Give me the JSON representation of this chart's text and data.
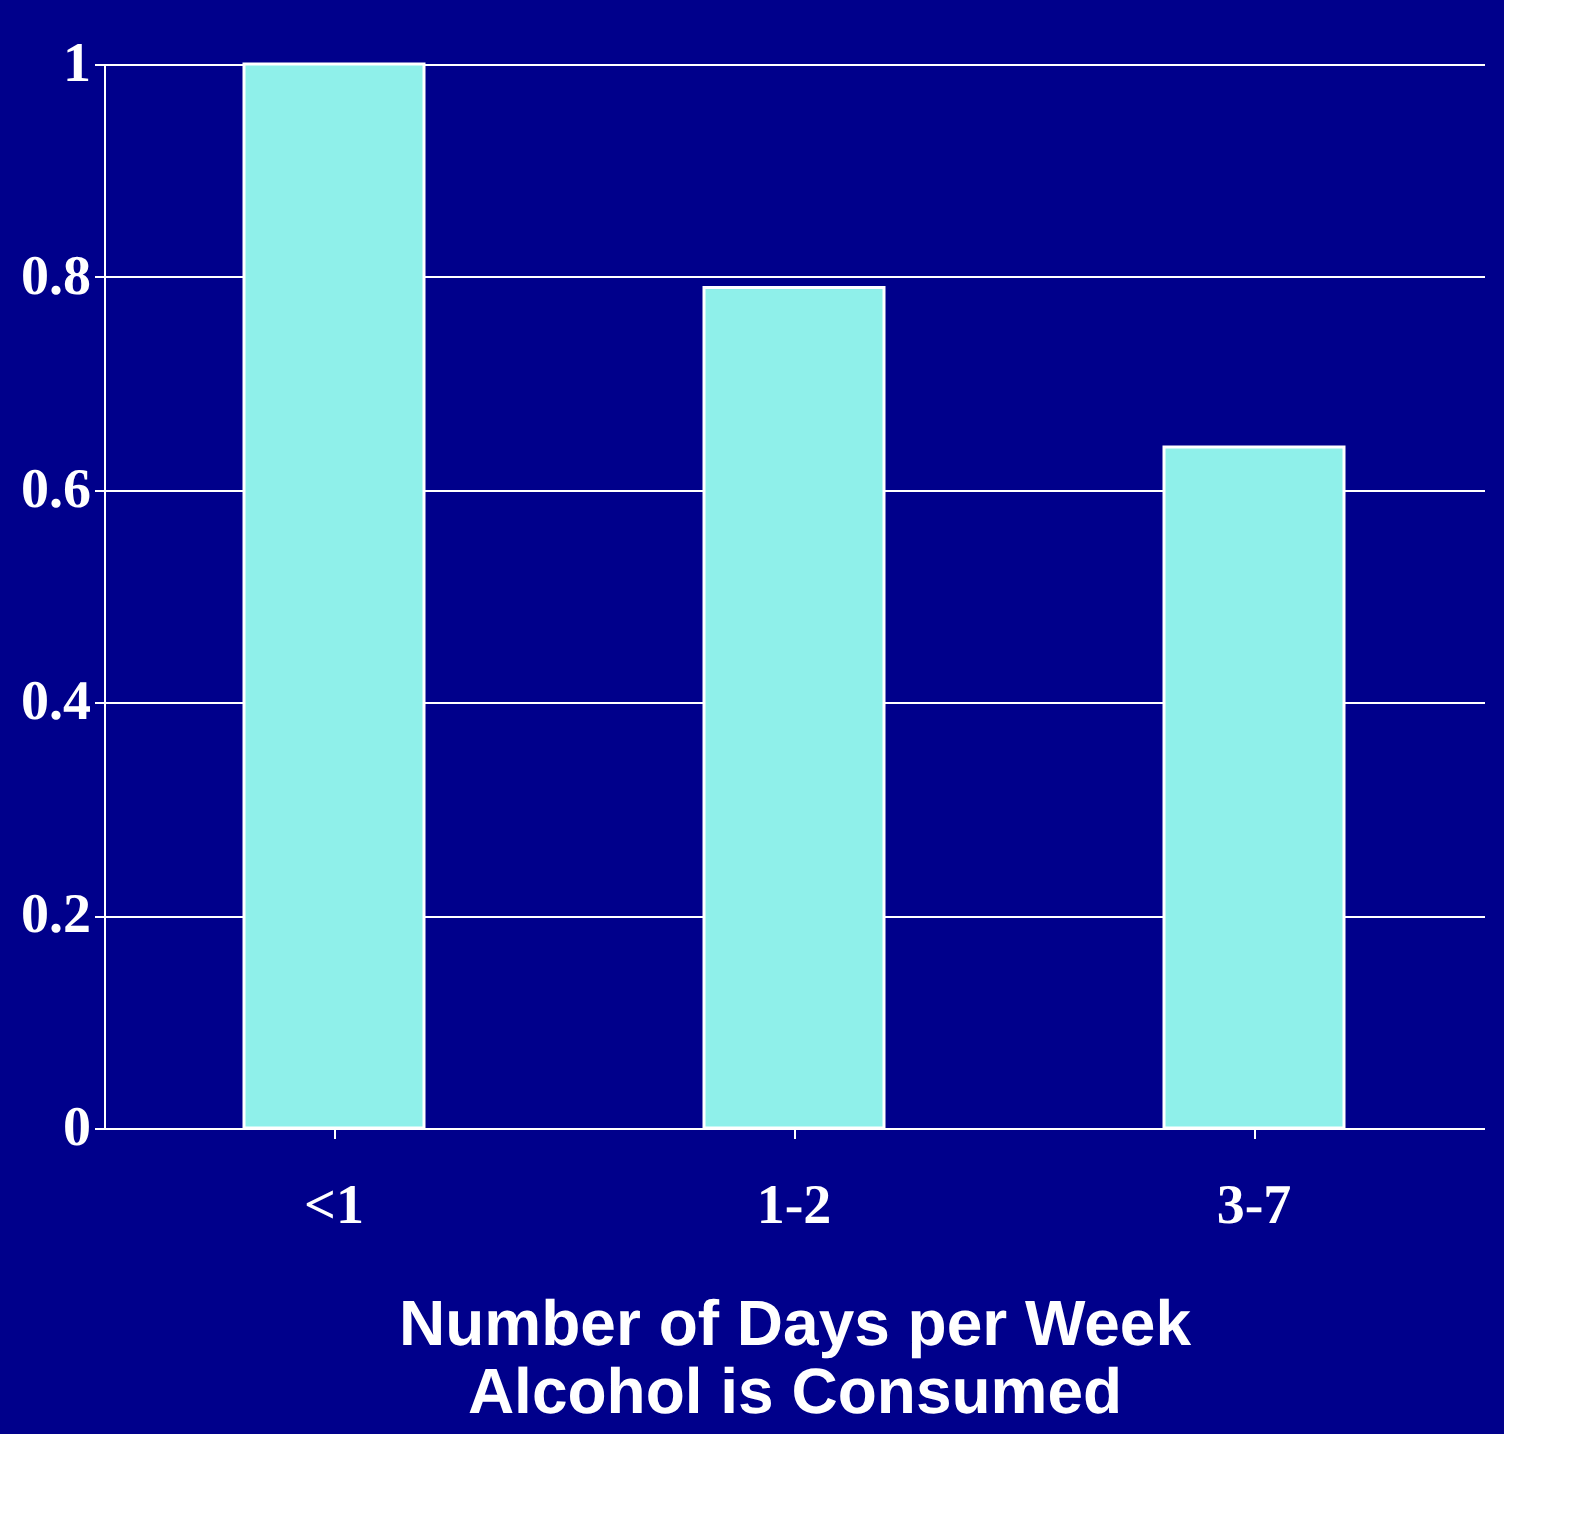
{
  "chart_data": {
    "type": "bar",
    "categories": [
      "<1",
      "1-2",
      "3-7"
    ],
    "values": [
      1.0,
      0.79,
      0.64
    ],
    "color": "#8ff0ea",
    "xlabel": "Number of Days per Week\nAlcohol is Consumed",
    "ylim": [
      0,
      1
    ],
    "yticks": [
      0,
      0.2,
      0.4,
      0.6,
      0.8,
      1
    ],
    "grid": "y"
  }
}
